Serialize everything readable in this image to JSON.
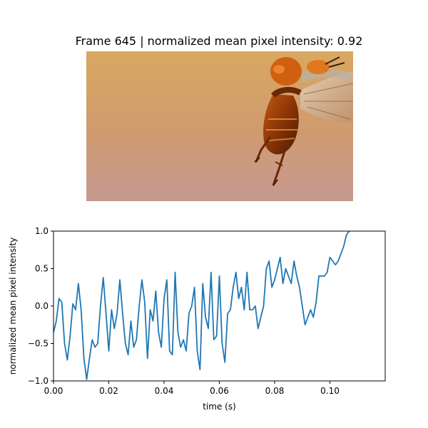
{
  "frame": {
    "title": "Frame 645 | normalized mean pixel intensity: 0.92",
    "image_subject": "beetle-in-flight-photo",
    "background_colors": {
      "top": "#d8a860",
      "middle": "#d09a70",
      "bottom": "#c69a92"
    }
  },
  "chart_data": {
    "type": "line",
    "xlabel": "time (s)",
    "ylabel": "normalized mean pixel intensity",
    "xlim": [
      0.0,
      0.12
    ],
    "ylim": [
      -1.0,
      1.0
    ],
    "x_ticks": [
      "0.00",
      "0.02",
      "0.04",
      "0.06",
      "0.08",
      "0.10"
    ],
    "y_ticks": [
      "−1.0",
      "−0.5",
      "0.0",
      "0.5",
      "1.0"
    ],
    "grid": false,
    "line_color": "#1f77b4",
    "series": [
      {
        "x": [
          0.0,
          0.001,
          0.002,
          0.003,
          0.004,
          0.005,
          0.006,
          0.007,
          0.008,
          0.009,
          0.01,
          0.011,
          0.012,
          0.013,
          0.014,
          0.015,
          0.016,
          0.017,
          0.018,
          0.019,
          0.02,
          0.021,
          0.022,
          0.023,
          0.024,
          0.025,
          0.026,
          0.027,
          0.028,
          0.029,
          0.03,
          0.031,
          0.032,
          0.033,
          0.034,
          0.035,
          0.036,
          0.037,
          0.038,
          0.039,
          0.04,
          0.041,
          0.042,
          0.043,
          0.044,
          0.045,
          0.046,
          0.047,
          0.048,
          0.049,
          0.05,
          0.051,
          0.052,
          0.053,
          0.054,
          0.055,
          0.056,
          0.057,
          0.058,
          0.059,
          0.06,
          0.061,
          0.062,
          0.063,
          0.064,
          0.065,
          0.066,
          0.067,
          0.068,
          0.069,
          0.07,
          0.071,
          0.072,
          0.073,
          0.074,
          0.075,
          0.076,
          0.077,
          0.078,
          0.079,
          0.08,
          0.081,
          0.082,
          0.083,
          0.084,
          0.085,
          0.086,
          0.087,
          0.088,
          0.089,
          0.09,
          0.091,
          0.092,
          0.093,
          0.094,
          0.095,
          0.096,
          0.097,
          0.098,
          0.099,
          0.1,
          0.101,
          0.102,
          0.103,
          0.104,
          0.105,
          0.106,
          0.107
        ],
        "y": [
          -0.35,
          -0.2,
          0.1,
          0.05,
          -0.5,
          -0.72,
          -0.4,
          0.03,
          -0.05,
          0.3,
          -0.05,
          -0.7,
          -0.98,
          -0.7,
          -0.45,
          -0.55,
          -0.5,
          0.0,
          0.38,
          -0.1,
          -0.6,
          -0.05,
          -0.3,
          -0.1,
          0.35,
          -0.1,
          -0.5,
          -0.65,
          -0.2,
          -0.55,
          -0.45,
          0.0,
          0.35,
          0.05,
          -0.7,
          -0.05,
          -0.2,
          0.2,
          -0.35,
          -0.55,
          0.1,
          0.35,
          -0.6,
          -0.65,
          0.45,
          -0.35,
          -0.55,
          -0.45,
          -0.6,
          -0.1,
          0.0,
          0.25,
          -0.6,
          -0.85,
          0.3,
          -0.15,
          -0.3,
          0.45,
          -0.45,
          -0.4,
          0.4,
          -0.5,
          -0.75,
          -0.1,
          -0.05,
          0.25,
          0.45,
          0.1,
          0.25,
          -0.05,
          0.45,
          -0.05,
          -0.05,
          0.0,
          -0.3,
          -0.15,
          0.0,
          0.5,
          0.6,
          0.25,
          0.35,
          0.5,
          0.65,
          0.3,
          0.5,
          0.4,
          0.3,
          0.6,
          0.4,
          0.25,
          0.0,
          -0.25,
          -0.15,
          -0.05,
          -0.15,
          0.05,
          0.4,
          0.4,
          0.4,
          0.45,
          0.65,
          0.6,
          0.55,
          0.6,
          0.7,
          0.8,
          0.95,
          1.0
        ]
      }
    ]
  }
}
